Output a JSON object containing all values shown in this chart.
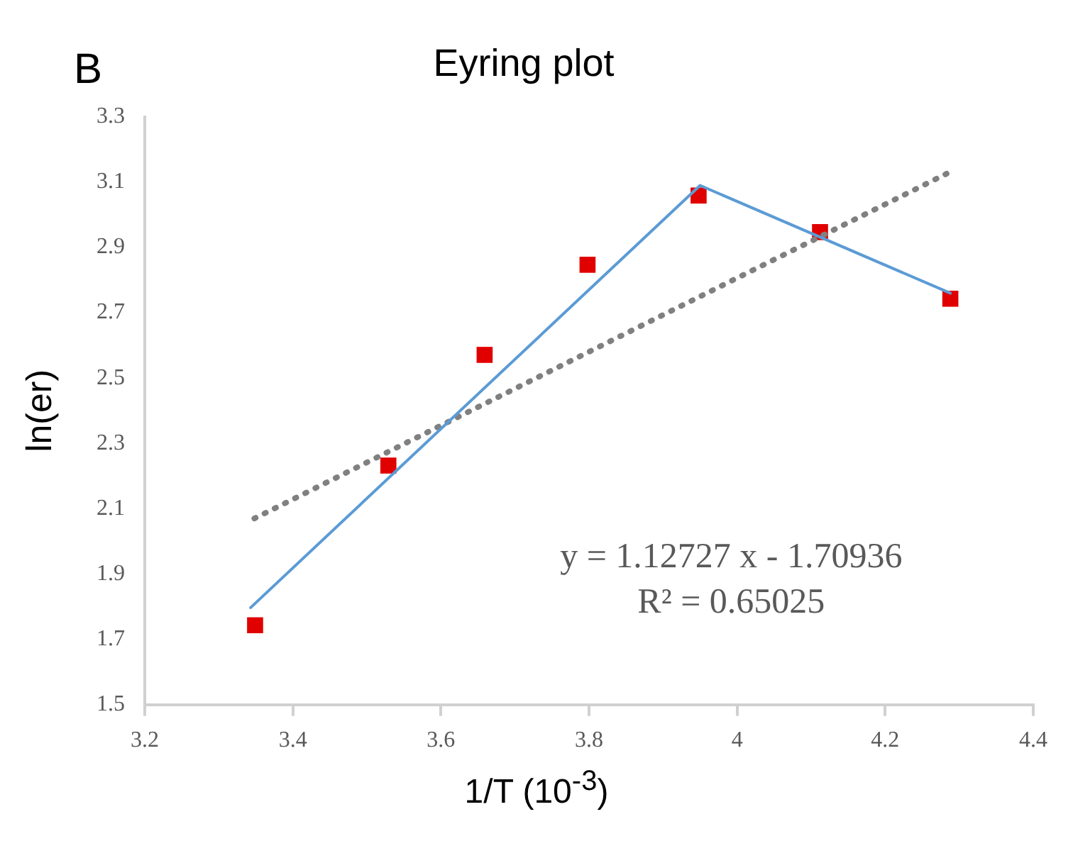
{
  "chart_data": {
    "type": "scatter",
    "title": "Eyring plot",
    "xlabel": "1/T (10$^{-3}$)",
    "ylabel": "ln(er)",
    "annotations": [
      "B",
      "y = 1.12727 x - 1.70936",
      "R² = 0.65025"
    ],
    "xlim": [
      3.2,
      4.4
    ],
    "xticks": [
      3.2,
      3.4,
      3.6,
      3.8,
      4,
      4.2,
      4.4
    ],
    "ylim": [
      1.5,
      3.3
    ],
    "yticks": [
      1.5,
      1.7,
      1.9,
      2.1,
      2.3,
      2.5,
      2.7,
      2.9,
      3.1,
      3.3
    ],
    "grid": false,
    "legend": false,
    "series": [
      {
        "type": "line",
        "color": "#5b9bd5",
        "marker": "none",
        "line_style": "solid",
        "x": [
          3.343,
          3.95,
          4.288
        ],
        "values": [
          1.797,
          3.09,
          2.76
        ]
      },
      {
        "type": "line",
        "color": "#808080",
        "marker": "none",
        "line_style": "dotted",
        "x": [
          3.348,
          4.283
        ],
        "values": [
          2.07,
          3.126
        ]
      },
      {
        "type": "scatter",
        "color": "#e00000",
        "marker": "square",
        "x": [
          3.349,
          3.529,
          3.659,
          3.798,
          3.948,
          4.112,
          4.288
        ],
        "values": [
          1.743,
          2.232,
          2.571,
          2.847,
          3.059,
          2.947,
          2.743
        ]
      }
    ]
  }
}
